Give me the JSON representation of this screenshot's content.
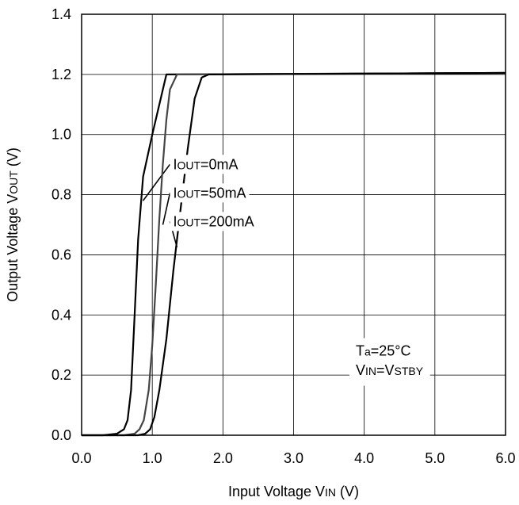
{
  "chart_data": {
    "type": "line",
    "xlabel": {
      "main": "Input Voltage V",
      "sub": "IN",
      "unit": " (V)"
    },
    "ylabel": {
      "main": "Output Voltage V",
      "sub": "OUT",
      "unit": " (V)"
    },
    "xlim": [
      0,
      6
    ],
    "ylim": [
      0,
      1.4
    ],
    "x_ticks": [
      "0.0",
      "1.0",
      "2.0",
      "3.0",
      "4.0",
      "5.0",
      "6.0"
    ],
    "y_ticks": [
      "0.0",
      "0.2",
      "0.4",
      "0.6",
      "0.8",
      "1.0",
      "1.2",
      "1.4"
    ],
    "grid": true,
    "series": [
      {
        "label_prefix": "I",
        "label_sub": "OUT",
        "label_rest": "=0mA",
        "color": "#000000",
        "points": [
          [
            0.0,
            0.0
          ],
          [
            0.3,
            0.0
          ],
          [
            0.5,
            0.005
          ],
          [
            0.6,
            0.02
          ],
          [
            0.65,
            0.05
          ],
          [
            0.7,
            0.15
          ],
          [
            0.75,
            0.4
          ],
          [
            0.8,
            0.65
          ],
          [
            0.85,
            0.8
          ],
          [
            0.87,
            0.86
          ],
          [
            1.0,
            1.0
          ],
          [
            1.1,
            1.1
          ],
          [
            1.2,
            1.2
          ],
          [
            6.0,
            1.205
          ]
        ]
      },
      {
        "label_prefix": "I",
        "label_sub": "OUT",
        "label_rest": "=50mA",
        "color": "#444444",
        "points": [
          [
            0.0,
            0.0
          ],
          [
            0.6,
            0.0
          ],
          [
            0.75,
            0.005
          ],
          [
            0.82,
            0.02
          ],
          [
            0.88,
            0.05
          ],
          [
            0.95,
            0.15
          ],
          [
            1.0,
            0.3
          ],
          [
            1.05,
            0.5
          ],
          [
            1.1,
            0.72
          ],
          [
            1.15,
            0.9
          ],
          [
            1.2,
            1.05
          ],
          [
            1.25,
            1.15
          ],
          [
            1.35,
            1.2
          ],
          [
            6.0,
            1.205
          ]
        ]
      },
      {
        "label_prefix": "I",
        "label_sub": "OUT",
        "label_rest": "=200mA",
        "color": "#000000",
        "points": [
          [
            0.0,
            0.0
          ],
          [
            0.8,
            0.0
          ],
          [
            0.9,
            0.005
          ],
          [
            0.97,
            0.02
          ],
          [
            1.03,
            0.06
          ],
          [
            1.1,
            0.15
          ],
          [
            1.2,
            0.32
          ],
          [
            1.3,
            0.55
          ],
          [
            1.4,
            0.75
          ],
          [
            1.5,
            0.95
          ],
          [
            1.6,
            1.12
          ],
          [
            1.7,
            1.19
          ],
          [
            1.8,
            1.2
          ],
          [
            6.0,
            1.205
          ]
        ]
      }
    ],
    "annotations": [
      {
        "prefix": "T",
        "sub": "a",
        "rest": "=25°C"
      },
      {
        "prefix": "V",
        "sub": "IN",
        "rest": "=V",
        "sub2": "STBY"
      }
    ]
  }
}
